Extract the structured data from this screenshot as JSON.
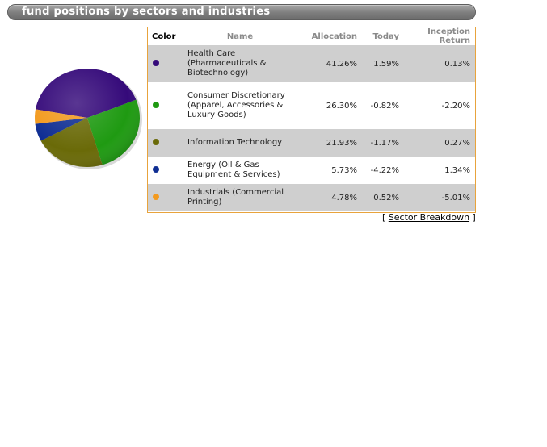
{
  "header": {
    "title": "fund positions by sectors and industries"
  },
  "table": {
    "columns": {
      "color": "Color",
      "name": "Name",
      "allocation": "Allocation",
      "today": "Today",
      "inception": "Inception Return"
    },
    "rows": [
      {
        "color": "#350a7a",
        "name": "Health Care (Pharmaceuticals & Biotechnology)",
        "allocation": "41.26%",
        "today": "1.59%",
        "inception": "0.13%"
      },
      {
        "color": "#1f9a12",
        "name": "Consumer Discretionary (Apparel, Accessories & Luxury Goods)",
        "allocation": "26.30%",
        "today": "-0.82%",
        "inception": "-2.20%"
      },
      {
        "color": "#6a6a08",
        "name": "Information Technology",
        "allocation": "21.93%",
        "today": "-1.17%",
        "inception": "0.27%"
      },
      {
        "color": "#0f2e93",
        "name": "Energy (Oil & Gas Equipment & Services)",
        "allocation": "5.73%",
        "today": "-4.22%",
        "inception": "1.34%"
      },
      {
        "color": "#f39a1e",
        "name": "Industrials (Commercial Printing)",
        "allocation": "4.78%",
        "today": "0.52%",
        "inception": "-5.01%"
      }
    ]
  },
  "breakdown": {
    "open": "[",
    "link": "Sector Breakdown",
    "close": "]"
  },
  "chart_data": {
    "type": "pie",
    "categories": [
      "Health Care",
      "Consumer Discretionary",
      "Information Technology",
      "Energy",
      "Industrials"
    ],
    "values": [
      41.26,
      26.3,
      21.93,
      5.73,
      4.78
    ],
    "colors": [
      "#350a7a",
      "#1f9a12",
      "#6a6a08",
      "#0f2e93",
      "#f39a1e"
    ]
  }
}
